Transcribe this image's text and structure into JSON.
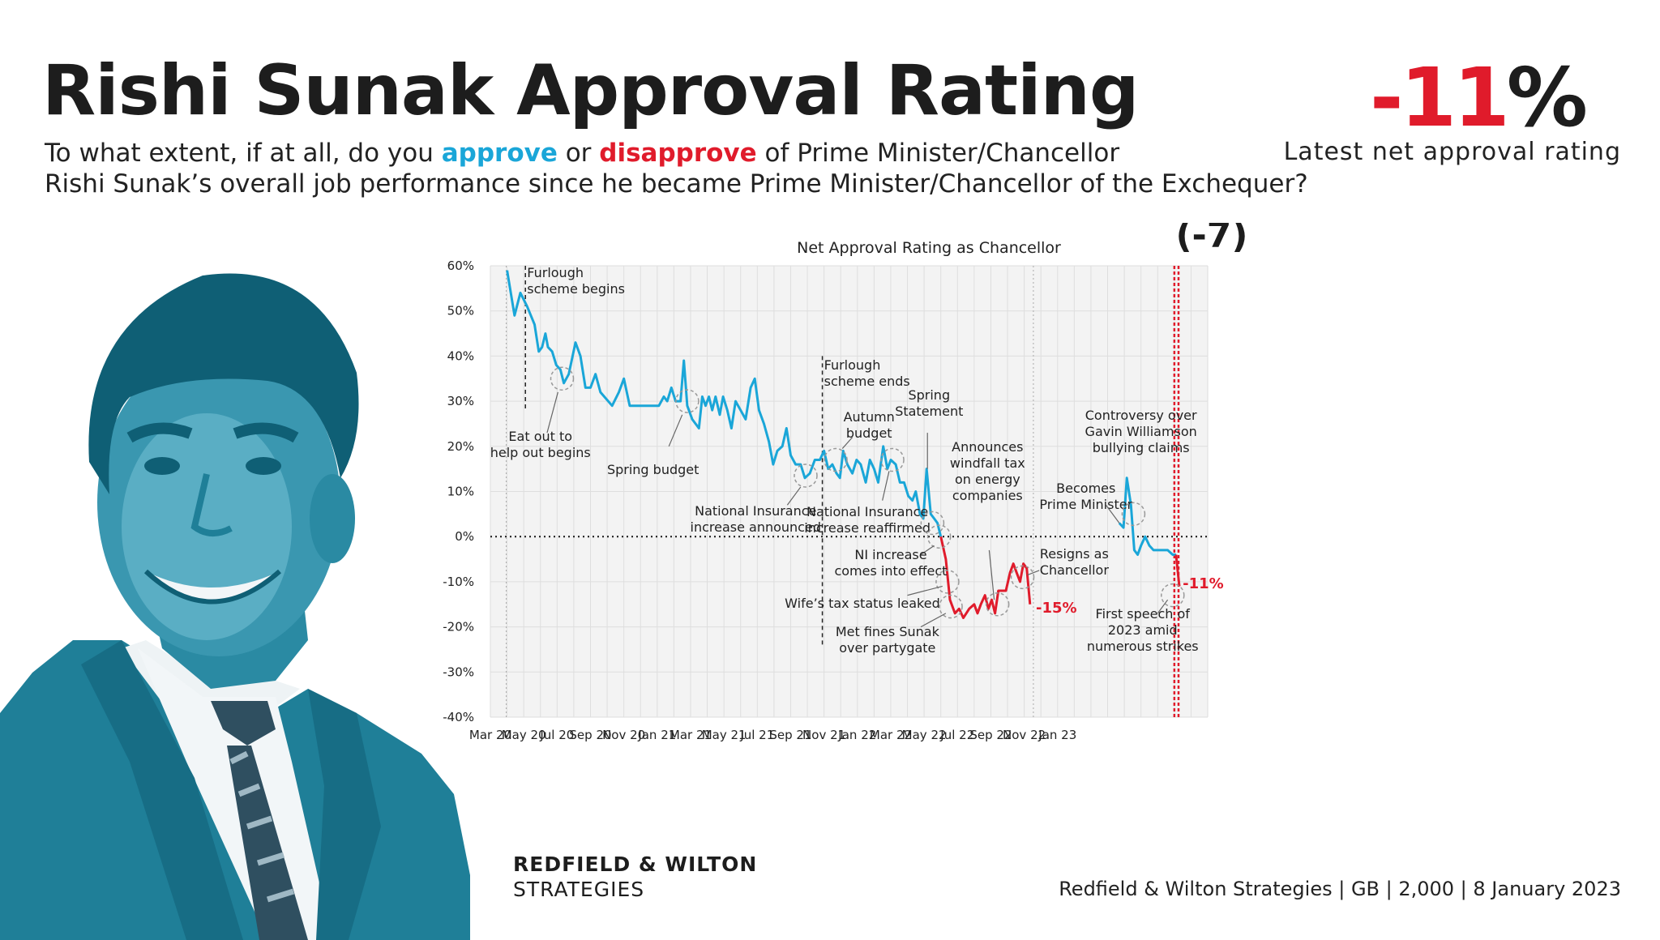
{
  "title": "Rishi Sunak Approval Rating",
  "question": {
    "part1": "To what extent, if at all, do you ",
    "approve": "approve",
    "or": " or ",
    "disapprove": "disapprove",
    "part2": " of Prime Minister/Chancellor",
    "line2": "Rishi Sunak’s overall job performance since he became Prime Minister/Chancellor of the Exchequer?"
  },
  "latest": {
    "sign": "-",
    "number": "11",
    "percent": "%",
    "label": "Latest net approval rating"
  },
  "change_badge": "(-7)",
  "brand": {
    "line1": "REDFIELD & WILTON",
    "line2": "STRATEGIES"
  },
  "source": "Redfield & Wilton Strategies | GB | 2,000 | 8 January 2023",
  "colors": {
    "approve": "#1aa6d8",
    "disapprove": "#e01b2b",
    "portrait": "#1f7f98"
  },
  "chart_data": {
    "type": "line",
    "title": "Net Approval Rating as Chancellor",
    "xlabel": "",
    "ylabel": "",
    "ylim": [
      -40,
      60
    ],
    "yticks": [
      60,
      50,
      40,
      30,
      20,
      10,
      0,
      -10,
      -20,
      -30,
      -40
    ],
    "ytick_labels": [
      "60%",
      "50%",
      "40%",
      "30%",
      "20%",
      "10%",
      "0%",
      "-10%",
      "-20%",
      "-30%",
      "-40%"
    ],
    "xtick_labels": [
      "Mar 20",
      "May 20",
      "Jul 20",
      "Sep 20",
      "Nov 20",
      "Jan 21",
      "Mar 21",
      "May 21",
      "Jul 21",
      "Sep 21",
      "Nov 21",
      "Jan 22",
      "Mar 22",
      "May 22",
      "Jul 22",
      "Sep 22",
      "Nov 22",
      "Jan 23"
    ],
    "grid": true,
    "zero_line": "dotted",
    "series": [
      {
        "role": "chancellor",
        "points": [
          [
            1.0,
            59
          ],
          [
            1.45,
            49
          ],
          [
            1.8,
            54
          ],
          [
            2.2,
            51
          ],
          [
            2.65,
            47
          ],
          [
            2.9,
            41
          ],
          [
            3.1,
            42
          ],
          [
            3.3,
            45
          ],
          [
            3.45,
            42
          ],
          [
            3.7,
            41
          ],
          [
            3.95,
            38
          ],
          [
            4.2,
            37
          ],
          [
            4.4,
            34
          ],
          [
            4.7,
            36
          ],
          [
            5.1,
            43
          ],
          [
            5.4,
            40
          ],
          [
            5.7,
            33
          ],
          [
            6.0,
            33
          ],
          [
            6.3,
            36
          ],
          [
            6.6,
            32
          ],
          [
            7.3,
            29
          ],
          [
            7.7,
            32
          ],
          [
            8.0,
            35
          ],
          [
            8.35,
            29
          ],
          [
            9.0,
            29
          ],
          [
            9.6,
            29
          ],
          [
            10.1,
            29
          ],
          [
            10.4,
            31
          ],
          [
            10.6,
            30
          ],
          [
            10.85,
            33
          ],
          [
            11.1,
            30
          ],
          [
            11.4,
            30
          ],
          [
            11.6,
            39
          ],
          [
            11.8,
            29
          ],
          [
            12.1,
            26
          ],
          [
            12.5,
            24
          ],
          [
            12.7,
            31
          ],
          [
            12.9,
            29
          ],
          [
            13.1,
            31
          ],
          [
            13.3,
            28
          ],
          [
            13.5,
            31
          ],
          [
            13.75,
            27
          ],
          [
            13.95,
            31
          ],
          [
            14.2,
            28
          ],
          [
            14.45,
            24
          ],
          [
            14.7,
            30
          ],
          [
            15.0,
            28
          ],
          [
            15.3,
            26
          ],
          [
            15.6,
            33
          ],
          [
            15.85,
            35
          ],
          [
            16.1,
            28
          ],
          [
            16.4,
            25
          ],
          [
            16.7,
            21
          ],
          [
            16.95,
            16
          ],
          [
            17.2,
            19
          ],
          [
            17.5,
            20
          ],
          [
            17.75,
            24
          ],
          [
            18.0,
            18
          ],
          [
            18.3,
            16
          ],
          [
            18.6,
            16
          ],
          [
            18.85,
            13
          ],
          [
            19.15,
            14
          ],
          [
            19.45,
            17
          ],
          [
            19.75,
            17
          ],
          [
            20.0,
            19
          ],
          [
            20.25,
            15
          ],
          [
            20.5,
            16
          ],
          [
            20.75,
            14
          ],
          [
            20.95,
            13
          ],
          [
            21.15,
            19
          ],
          [
            21.4,
            16
          ],
          [
            21.7,
            14
          ],
          [
            21.95,
            17
          ],
          [
            22.2,
            16
          ],
          [
            22.5,
            12
          ],
          [
            22.75,
            17
          ],
          [
            23.0,
            15
          ],
          [
            23.25,
            12
          ],
          [
            23.55,
            20
          ],
          [
            23.8,
            15
          ],
          [
            24.0,
            17
          ],
          [
            24.3,
            16
          ],
          [
            24.55,
            12
          ],
          [
            24.8,
            12
          ],
          [
            25.05,
            9
          ],
          [
            25.3,
            8
          ],
          [
            25.5,
            10
          ],
          [
            25.75,
            5
          ],
          [
            25.95,
            4
          ],
          [
            26.15,
            15
          ],
          [
            26.4,
            5
          ],
          [
            26.6,
            4
          ],
          [
            26.8,
            3
          ],
          [
            27.0,
            0
          ]
        ]
      },
      {
        "role": "net-negative",
        "points": [
          [
            27.0,
            0
          ],
          [
            27.3,
            -5
          ],
          [
            27.55,
            -14
          ],
          [
            27.85,
            -17
          ],
          [
            28.1,
            -16
          ],
          [
            28.35,
            -18
          ],
          [
            28.7,
            -16
          ],
          [
            29.0,
            -15
          ],
          [
            29.2,
            -17
          ],
          [
            29.4,
            -15
          ],
          [
            29.65,
            -13
          ],
          [
            29.85,
            -16
          ],
          [
            30.05,
            -14
          ],
          [
            30.25,
            -17
          ],
          [
            30.45,
            -12
          ],
          [
            30.65,
            -12
          ],
          [
            30.9,
            -12
          ],
          [
            31.15,
            -8
          ],
          [
            31.35,
            -6
          ],
          [
            31.55,
            -8
          ],
          [
            31.75,
            -10
          ],
          [
            31.95,
            -6
          ],
          [
            32.15,
            -7
          ],
          [
            32.35,
            -15
          ]
        ]
      },
      {
        "role": "prime-minister",
        "points": [
          [
            37.7,
            3
          ],
          [
            37.95,
            2
          ],
          [
            38.15,
            13
          ],
          [
            38.4,
            7
          ],
          [
            38.6,
            -3
          ],
          [
            38.8,
            -4
          ],
          [
            39.0,
            -2
          ],
          [
            39.25,
            0
          ],
          [
            39.5,
            -2
          ],
          [
            39.75,
            -3
          ],
          [
            40.0,
            -3
          ],
          [
            40.3,
            -3
          ],
          [
            40.6,
            -3
          ],
          [
            40.9,
            -4
          ],
          [
            41.1,
            -4
          ]
        ]
      },
      {
        "role": "prime-minister-latest",
        "points": [
          [
            41.1,
            -4
          ],
          [
            41.3,
            -11
          ]
        ]
      }
    ],
    "end_labels": [
      "-15%",
      "-11%"
    ],
    "annotations": {
      "furlough_begins": [
        "Furlough",
        "scheme begins"
      ],
      "eat_out": [
        "Eat out to",
        "help out  begins"
      ],
      "spring_budget": [
        "Spring budget"
      ],
      "ni_announced": [
        "National Insurance",
        "increase announced"
      ],
      "furlough_ends": [
        "Furlough",
        "scheme ends"
      ],
      "autumn_budget": [
        "Autumn",
        "budget"
      ],
      "ni_reaffirmed": [
        "National Insurance",
        "increase reaffirmed"
      ],
      "spring_statement": [
        "Spring",
        "Statement"
      ],
      "windfall_tax": [
        "Announces",
        "windfall tax",
        "on energy",
        "companies"
      ],
      "ni_effect": [
        "NI increase",
        "comes into effect"
      ],
      "wife_tax": [
        "Wife’s tax status leaked"
      ],
      "met_fines": [
        "Met fines Sunak",
        "over partygate"
      ],
      "resigns": [
        "Resigns as",
        "Chancellor"
      ],
      "becomes_pm": [
        "Becomes",
        "Prime Minister"
      ],
      "williamson": [
        "Controversy over",
        "Gavin Williamson",
        "bullying claims"
      ],
      "first_speech": [
        "First speech of",
        "2023 amid",
        "numerous strikes"
      ]
    }
  }
}
